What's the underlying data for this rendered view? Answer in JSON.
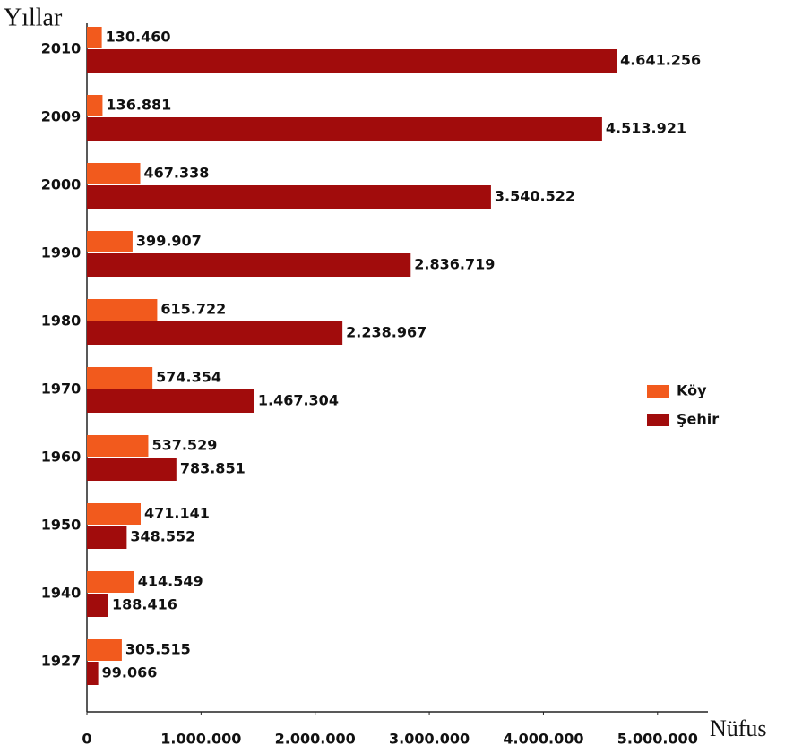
{
  "chart_data": {
    "type": "barh",
    "xlabel": "Nüfus",
    "ylabel": "Yıllar",
    "categories": [
      "2010",
      "2009",
      "2000",
      "1990",
      "1980",
      "1970",
      "1960",
      "1950",
      "1940",
      "1927"
    ],
    "series": [
      {
        "name": "Köy",
        "color": "#f25a1d",
        "values": [
          130460,
          136881,
          467338,
          399907,
          615722,
          574354,
          537529,
          471141,
          414549,
          305515
        ],
        "value_labels": [
          "130.460",
          "136.881",
          "467.338",
          "399.907",
          "615.722",
          "574.354",
          "537.529",
          "471.141",
          "414.549",
          "305.515"
        ]
      },
      {
        "name": "Şehir",
        "color": "#a10c0c",
        "values": [
          4641256,
          4513921,
          3540522,
          2836719,
          2238967,
          1467304,
          783851,
          348552,
          188416,
          99066
        ],
        "value_labels": [
          "4.641.256",
          "4.513.921",
          "3.540.522",
          "2.836.719",
          "2.238.967",
          "1.467.304",
          "783.851",
          "348.552",
          "188.416",
          "99.066"
        ]
      }
    ],
    "xlim": [
      0,
      5300000
    ],
    "xticks": [
      0,
      {
        "value": 1000000,
        "label": "1.000.000"
      },
      {
        "value": 2000000,
        "label": "2.000.000"
      },
      {
        "value": 3000000,
        "label": "3.000.000"
      },
      {
        "value": 4000000,
        "label": "4.000.000"
      },
      {
        "value": 5000000,
        "label": "5.000.000"
      }
    ],
    "legend": "right"
  }
}
